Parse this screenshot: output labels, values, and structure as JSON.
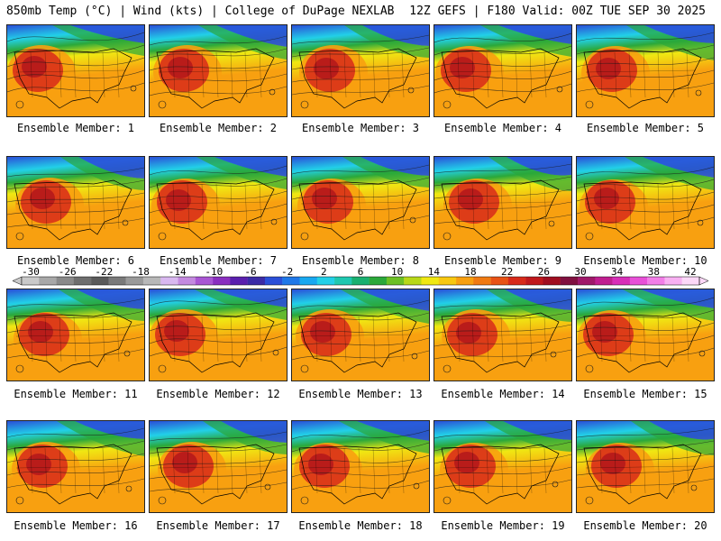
{
  "header": {
    "left": "850mb Temp (°C) | Wind (kts) | College of DuPage NEXLAB",
    "right": "12Z GEFS | F180 Valid: 00Z TUE SEP 30 2025"
  },
  "members": [
    {
      "label": "Ensemble Member: 1"
    },
    {
      "label": "Ensemble Member: 2"
    },
    {
      "label": "Ensemble Member: 3"
    },
    {
      "label": "Ensemble Member: 4"
    },
    {
      "label": "Ensemble Member: 5"
    },
    {
      "label": "Ensemble Member: 6"
    },
    {
      "label": "Ensemble Member: 7"
    },
    {
      "label": "Ensemble Member: 8"
    },
    {
      "label": "Ensemble Member: 9"
    },
    {
      "label": "Ensemble Member: 10"
    },
    {
      "label": "Ensemble Member: 11"
    },
    {
      "label": "Ensemble Member: 12"
    },
    {
      "label": "Ensemble Member: 13"
    },
    {
      "label": "Ensemble Member: 14"
    },
    {
      "label": "Ensemble Member: 15"
    },
    {
      "label": "Ensemble Member: 16"
    },
    {
      "label": "Ensemble Member: 17"
    },
    {
      "label": "Ensemble Member: 18"
    },
    {
      "label": "Ensemble Member: 19"
    },
    {
      "label": "Ensemble Member: 20"
    }
  ],
  "colorbar": {
    "tick_labels": [
      "-30",
      "-26",
      "-22",
      "-18",
      "-14",
      "-10",
      "-6",
      "-2",
      "2",
      "6",
      "10",
      "14",
      "18",
      "22",
      "26",
      "30",
      "34",
      "38",
      "42"
    ],
    "colors": [
      "#c9c9c9",
      "#a8a8a8",
      "#8a8a8a",
      "#6e6e6e",
      "#5a5a5a",
      "#7a7a7a",
      "#9a9a9a",
      "#b8b8b8",
      "#d9b8f0",
      "#c48ae0",
      "#a956d4",
      "#8a2fc0",
      "#5a1fae",
      "#3b2ba6",
      "#2a4fd8",
      "#1f78e8",
      "#18a8f0",
      "#22d0e8",
      "#1fc8b0",
      "#19b070",
      "#2aa83a",
      "#6cc024",
      "#b8d818",
      "#f0e812",
      "#f8c810",
      "#f8a010",
      "#f07a12",
      "#e85216",
      "#d82a1a",
      "#c0181c",
      "#a00e20",
      "#801040",
      "#a0186a",
      "#c01e90",
      "#d82eb8",
      "#e850d8",
      "#f27ee8",
      "#f8b0f2",
      "#fcd8f8"
    ]
  },
  "palette": {
    "cold": "#2a4fd8",
    "cyan": "#22d0e8",
    "green": "#2aa83a",
    "yellow": "#f0e812",
    "orange": "#f8a010",
    "red": "#d82a1a",
    "darkred": "#b0141c",
    "contour": "#1a1a1a"
  }
}
